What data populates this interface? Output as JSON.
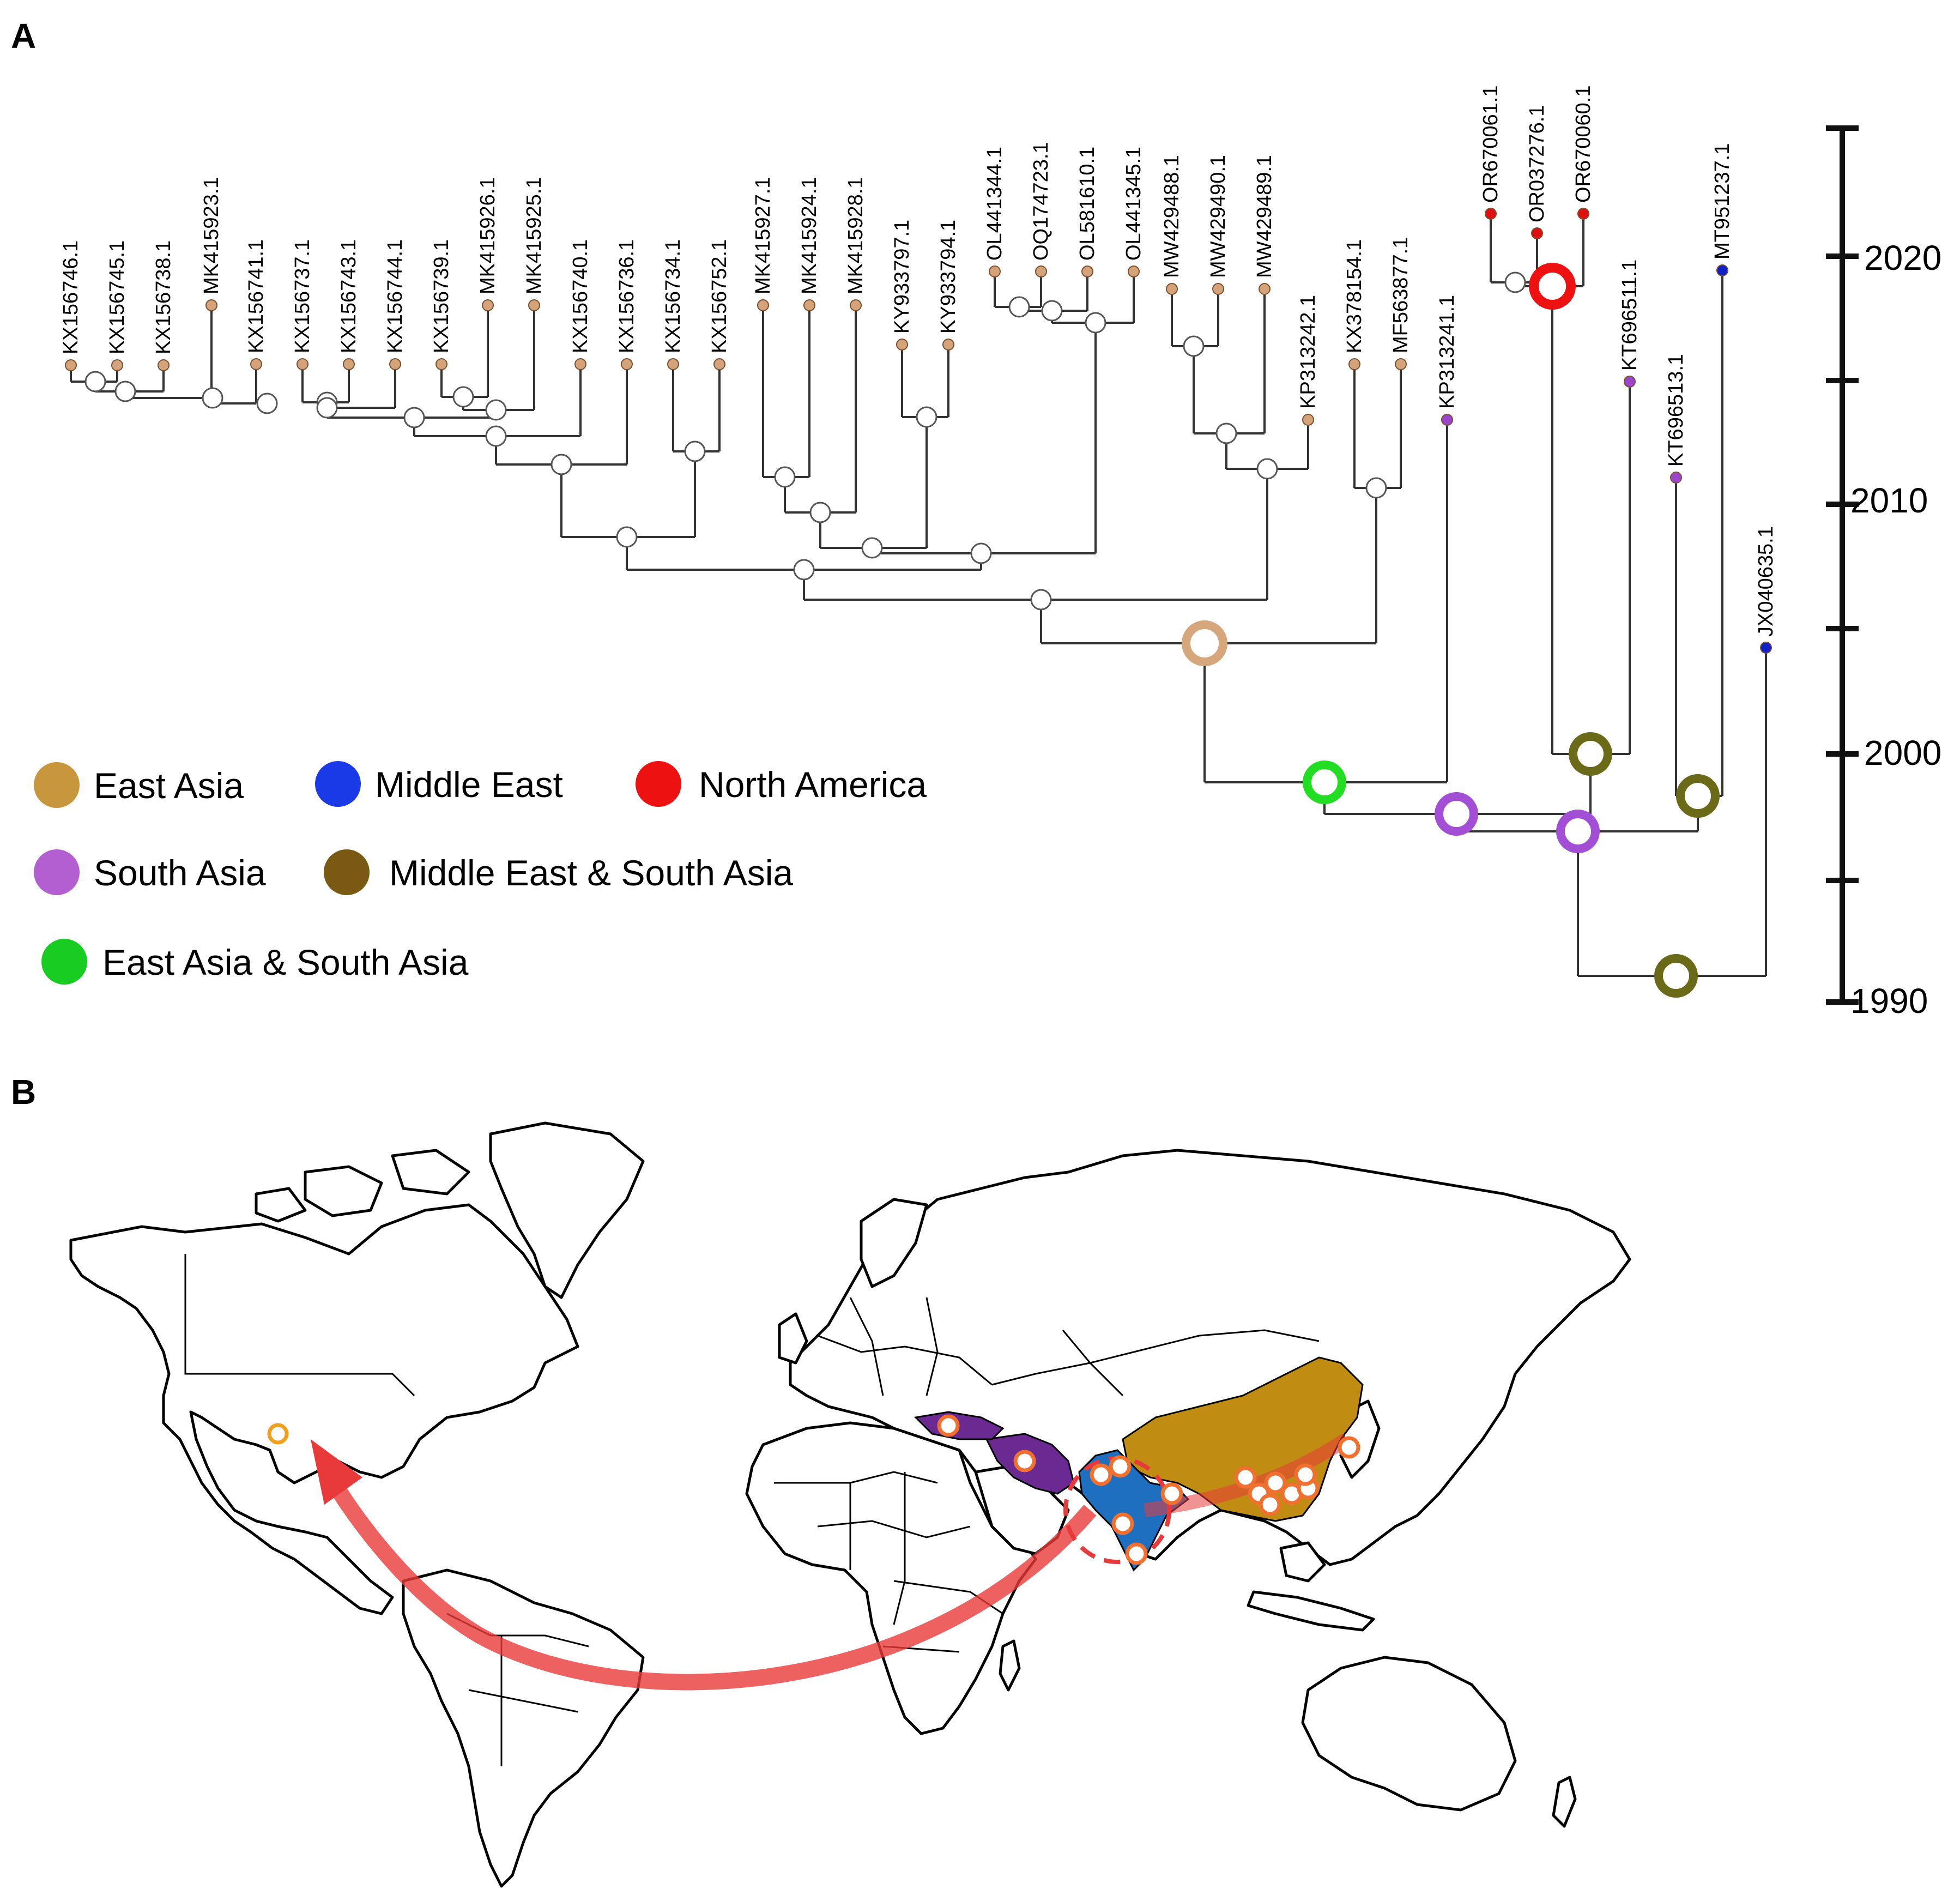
{
  "panels": {
    "a": "A",
    "b": "B"
  },
  "colors": {
    "east_asia": "#c8963c",
    "middle_east": "#1a3ae8",
    "north_america": "#ee1111",
    "south_asia": "#a94fd0",
    "me_sa": "#7a5a12",
    "ea_sa": "#18cc22",
    "tip_east_asia": "#d4a37a",
    "tip_south_asia": "#9b45cc",
    "tip_middle_east": "#1020c8",
    "tip_north_america": "#e01010",
    "node_olive": "#6b6a18",
    "node_tan": "#d6a77c",
    "node_purple": "#a24fd6",
    "node_green": "#22dd22",
    "node_red": "#ee1111",
    "map_china": "#c08c12",
    "map_india": "#1f6fc0",
    "map_iran_turkey": "#6a2a92",
    "arrow": "#e83a3a"
  },
  "legend": [
    {
      "label": "East Asia",
      "color": "#c8963c",
      "icon": "circle"
    },
    {
      "label": "Middle East",
      "color": "#1a3ae8",
      "icon": "circle"
    },
    {
      "label": "North America",
      "color": "#ee1111",
      "icon": "circle"
    },
    {
      "label": "South Asia",
      "color": "#b35fd2",
      "icon": "circle"
    },
    {
      "label": "Middle East &  South Asia",
      "color": "#7a5a12",
      "icon": "circle"
    },
    {
      "label": "East Asia &  South Asia",
      "color": "#18cc22",
      "icon": "circle"
    }
  ],
  "axis": {
    "ticks": [
      "2020",
      "2010",
      "2000",
      "1990"
    ]
  },
  "tips": [
    {
      "label": "KX156746.1",
      "region": "East Asia"
    },
    {
      "label": "KX156745.1",
      "region": "East Asia"
    },
    {
      "label": "KX156738.1",
      "region": "East Asia"
    },
    {
      "label": "MK415923.1",
      "region": "East Asia"
    },
    {
      "label": "KX156741.1",
      "region": "East Asia"
    },
    {
      "label": "KX156737.1",
      "region": "East Asia"
    },
    {
      "label": "KX156743.1",
      "region": "East Asia"
    },
    {
      "label": "KX156744.1",
      "region": "East Asia"
    },
    {
      "label": "KX156739.1",
      "region": "East Asia"
    },
    {
      "label": "MK415926.1",
      "region": "East Asia"
    },
    {
      "label": "MK415925.1",
      "region": "East Asia"
    },
    {
      "label": "KX156740.1",
      "region": "East Asia"
    },
    {
      "label": "KX156736.1",
      "region": "East Asia"
    },
    {
      "label": "KX156734.1",
      "region": "East Asia"
    },
    {
      "label": "KX156752.1",
      "region": "East Asia"
    },
    {
      "label": "MK415927.1",
      "region": "East Asia"
    },
    {
      "label": "MK415924.1",
      "region": "East Asia"
    },
    {
      "label": "MK415928.1",
      "region": "East Asia"
    },
    {
      "label": "KY933797.1",
      "region": "East Asia"
    },
    {
      "label": "KY933794.1",
      "region": "East Asia"
    },
    {
      "label": "OL441344.1",
      "region": "East Asia"
    },
    {
      "label": "OQ174723.1",
      "region": "East Asia"
    },
    {
      "label": "OL581610.1",
      "region": "East Asia"
    },
    {
      "label": "OL441345.1",
      "region": "East Asia"
    },
    {
      "label": "MW429488.1",
      "region": "East Asia"
    },
    {
      "label": "MW429490.1",
      "region": "East Asia"
    },
    {
      "label": "MW429489.1",
      "region": "East Asia"
    },
    {
      "label": "KP313242.1",
      "region": "East Asia"
    },
    {
      "label": "KX378154.1",
      "region": "East Asia"
    },
    {
      "label": "MF563877.1",
      "region": "East Asia"
    },
    {
      "label": "KP313241.1",
      "region": "South Asia"
    },
    {
      "label": "OR670061.1",
      "region": "North America"
    },
    {
      "label": "OR037276.1",
      "region": "North America"
    },
    {
      "label": "OR670060.1",
      "region": "North America"
    },
    {
      "label": "KT696511.1",
      "region": "South Asia"
    },
    {
      "label": "KT696513.1",
      "region": "South Asia"
    },
    {
      "label": "MT951237.1",
      "region": "Middle East"
    },
    {
      "label": "JX040635.1",
      "region": "Middle East"
    }
  ]
}
